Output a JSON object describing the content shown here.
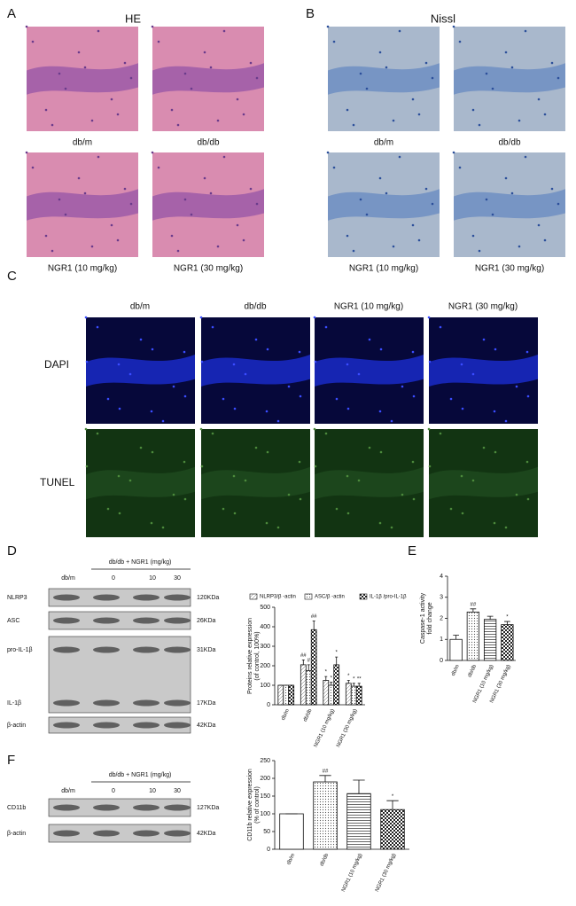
{
  "panels": {
    "A": {
      "label": "A",
      "title": "HE",
      "captions": [
        "db/m",
        "db/db",
        "NGR1 (10 mg/kg)",
        "NGR1 (30 mg/kg)"
      ]
    },
    "B": {
      "label": "B",
      "title": "Nissl",
      "captions": [
        "db/m",
        "db/db",
        "NGR1 (10 mg/kg)",
        "NGR1 (30 mg/kg)"
      ]
    },
    "C": {
      "label": "C",
      "columns": [
        "db/m",
        "db/db",
        "NGR1 (10 mg/kg)",
        "NGR1 (30 mg/kg)"
      ],
      "rows": [
        "DAPI",
        "TUNEL"
      ]
    },
    "D": {
      "label": "D",
      "blot": {
        "control": "db/m",
        "header": "db/db + NGR1 (mg/kg)",
        "doses": [
          "0",
          "10",
          "30"
        ],
        "rows": [
          {
            "name": "NLRP3",
            "size": "120KDa"
          },
          {
            "name": "ASC",
            "size": "26KDa"
          },
          {
            "name": "pro-IL-1β",
            "size": "31KDa"
          },
          {
            "name": "IL-1β",
            "size": "17KDa"
          },
          {
            "name": "β-actin",
            "size": "42KDa"
          }
        ]
      },
      "chart": {
        "type": "bar",
        "ylabel": [
          "Proteins relative expression",
          "(of control, 100%)"
        ],
        "categories": [
          "db/m",
          "db/db",
          "NGR1 (10 mg/kg)",
          "NGR1 (30 mg/kg)"
        ],
        "series": [
          {
            "name": "NLRP3/β -actin",
            "fill": "diag",
            "values": [
              100,
              205,
              125,
              110
            ],
            "errors": [
              0,
              25,
              20,
              15
            ],
            "annotations": [
              null,
              "##",
              "*",
              "*"
            ]
          },
          {
            "name": "ASC/β -actin",
            "fill": "dots",
            "values": [
              100,
              175,
              100,
              95
            ],
            "errors": [
              0,
              30,
              15,
              15
            ],
            "annotations": [
              null,
              "#",
              "*",
              "*"
            ]
          },
          {
            "name": "IL-1β /pro-IL-1β",
            "fill": "checker",
            "values": [
              100,
              385,
              205,
              95
            ],
            "errors": [
              0,
              45,
              40,
              15
            ],
            "annotations": [
              null,
              "##",
              "*",
              "**"
            ]
          }
        ],
        "ylim": [
          0,
          500
        ],
        "yticks": [
          0,
          100,
          200,
          300,
          400,
          500
        ]
      }
    },
    "E": {
      "label": "E",
      "chart": {
        "type": "bar",
        "ylabel": [
          "Caspase-1 activity",
          "fold change"
        ],
        "categories": [
          "db/m",
          "db/db",
          "NGR1 (10 mg/kg)",
          "NGR1 (30 mg/kg)"
        ],
        "values": [
          1,
          2.3,
          1.95,
          1.7
        ],
        "errors": [
          0.2,
          0.15,
          0.15,
          0.15
        ],
        "fills": [
          "white",
          "dots",
          "hlines",
          "checker"
        ],
        "annotations": [
          null,
          "##",
          null,
          "*"
        ],
        "ylim": [
          0,
          4
        ],
        "yticks": [
          0,
          1,
          2,
          3,
          4
        ]
      }
    },
    "F": {
      "label": "F",
      "blot": {
        "control": "db/m",
        "header": "db/db + NGR1 (mg/kg)",
        "doses": [
          "0",
          "10",
          "30"
        ],
        "rows": [
          {
            "name": "CD11b",
            "size": "127KDa"
          },
          {
            "name": "β-actin",
            "size": "42KDa"
          }
        ]
      },
      "chart": {
        "type": "bar",
        "ylabel": [
          "CD11b relative expression",
          "(% of control)"
        ],
        "categories": [
          "db/m",
          "db/db",
          "NGR1 (10 mg/kg)",
          "NGR1 (30 mg/kg)"
        ],
        "values": [
          100,
          190,
          157,
          112
        ],
        "errors": [
          0,
          18,
          38,
          25
        ],
        "fills": [
          "white",
          "dots",
          "hlines",
          "checker"
        ],
        "annotations": [
          null,
          "##",
          null,
          "*"
        ],
        "ylim": [
          0,
          250
        ],
        "yticks": [
          0,
          50,
          100,
          150,
          200,
          250
        ]
      }
    }
  }
}
